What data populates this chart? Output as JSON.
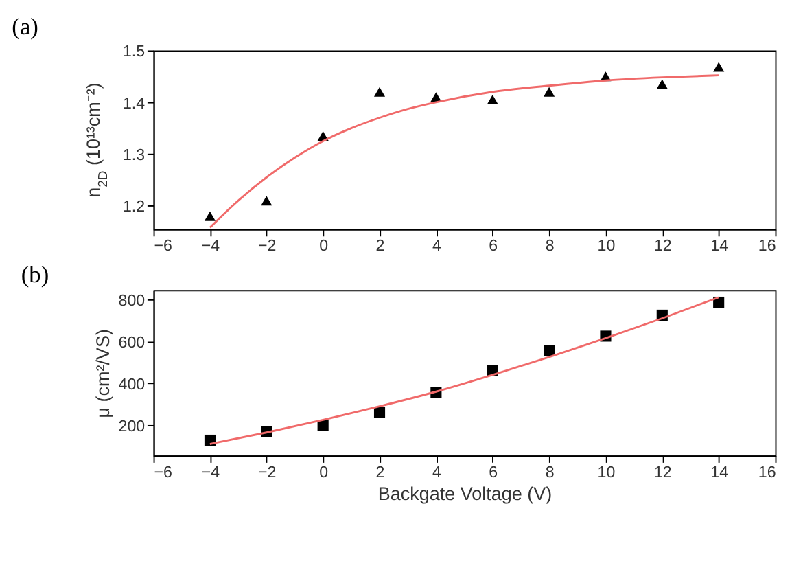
{
  "chart_data": [
    {
      "type": "scatter",
      "title": "(a)",
      "ylabel": "n$_{2D}$ (10¹³cm⁻²)",
      "xlim": [
        -6,
        16
      ],
      "xticks": [
        -6,
        -4,
        -2,
        0,
        2,
        4,
        6,
        8,
        10,
        12,
        14,
        16
      ],
      "ylim": [
        1.155,
        1.5
      ],
      "yticks": [
        1.2,
        1.3,
        1.4,
        1.5
      ],
      "grid": false,
      "series": [
        {
          "type": "scatter",
          "marker": "triangle",
          "color": "#000000",
          "x": [
            -4,
            -2,
            0,
            2,
            4,
            6,
            8,
            10,
            12,
            14
          ],
          "values": [
            1.18,
            1.21,
            1.335,
            1.42,
            1.41,
            1.405,
            1.42,
            1.45,
            1.435,
            1.468
          ]
        },
        {
          "type": "line",
          "color": "#f06a6a",
          "x": [
            -4,
            -3,
            -2,
            -1,
            0,
            1,
            2,
            3,
            4,
            6,
            8,
            10,
            12,
            14
          ],
          "values": [
            1.158,
            1.21,
            1.255,
            1.293,
            1.325,
            1.35,
            1.37,
            1.387,
            1.4,
            1.42,
            1.432,
            1.442,
            1.448,
            1.452
          ]
        }
      ]
    },
    {
      "type": "scatter",
      "title": "(b)",
      "xlabel": "Backgate Voltage (V)",
      "ylabel": "μ (cm²/VS)",
      "xlim": [
        -6,
        16
      ],
      "xticks": [
        -6,
        -4,
        -2,
        0,
        2,
        4,
        6,
        8,
        10,
        12,
        14,
        16
      ],
      "ylim": [
        55,
        845
      ],
      "yticks": [
        200,
        400,
        600,
        800
      ],
      "grid": false,
      "series": [
        {
          "type": "scatter",
          "marker": "square",
          "color": "#000000",
          "x": [
            -4,
            -2,
            0,
            2,
            4,
            6,
            8,
            10,
            12,
            14
          ],
          "values": [
            128,
            170,
            200,
            260,
            355,
            462,
            555,
            625,
            725,
            787
          ]
        },
        {
          "type": "line",
          "color": "#f06a6a",
          "x": [
            -4,
            -2,
            0,
            2,
            4,
            6,
            8,
            10,
            12,
            14
          ],
          "values": [
            110,
            165,
            225,
            290,
            360,
            440,
            525,
            615,
            710,
            810
          ]
        }
      ]
    }
  ]
}
